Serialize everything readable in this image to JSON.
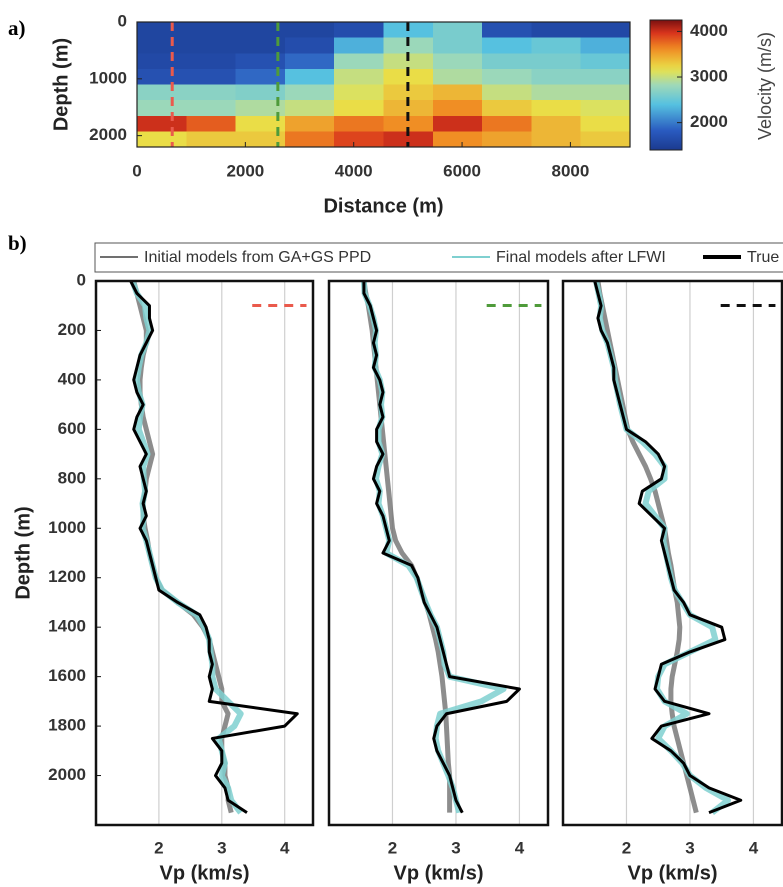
{
  "chart_data": [
    {
      "type": "heatmap",
      "title": "a)",
      "xlabel": "Distance (m)",
      "ylabel": "Depth (m)",
      "xlim": [
        0,
        9100
      ],
      "xticks": [
        0,
        2000,
        4000,
        6000,
        8000
      ],
      "ylim": [
        0,
        2200
      ],
      "yticks": [
        0,
        1000,
        2000
      ],
      "xbins": [
        0,
        910,
        1820,
        2730,
        3640,
        4550,
        5460,
        6370,
        7280,
        8190,
        9100
      ],
      "ybins": [
        0,
        275,
        550,
        825,
        1100,
        1375,
        1650,
        1925,
        2200
      ],
      "values": [
        [
          1550,
          1550,
          1550,
          1550,
          1650,
          2400,
          2600,
          1700,
          1600,
          1600
        ],
        [
          1550,
          1550,
          1550,
          1650,
          2300,
          2800,
          2600,
          2400,
          2500,
          2300
        ],
        [
          1600,
          1600,
          1700,
          1900,
          2800,
          3000,
          2800,
          2600,
          2600,
          2500
        ],
        [
          1700,
          1700,
          1900,
          2400,
          3000,
          3200,
          2900,
          2800,
          2700,
          2700
        ],
        [
          2700,
          2700,
          2650,
          2800,
          3100,
          3300,
          3400,
          3000,
          2900,
          2900
        ],
        [
          2800,
          2800,
          2900,
          3000,
          3200,
          3400,
          3600,
          3300,
          3200,
          3100
        ],
        [
          4000,
          3800,
          3200,
          3500,
          3700,
          3600,
          4000,
          3700,
          3400,
          3200
        ],
        [
          3200,
          3300,
          3300,
          3700,
          3900,
          4000,
          3600,
          3500,
          3400,
          3300
        ]
      ],
      "markers": [
        {
          "x": 650,
          "color": "#ea5a4c"
        },
        {
          "x": 2600,
          "color": "#4f9b3a"
        },
        {
          "x": 5000,
          "color": "#111111"
        }
      ],
      "colorbar_label": "Velocity (m/s)",
      "clim": [
        1400,
        4250
      ],
      "cticks": [
        2000,
        3000,
        4000
      ]
    },
    {
      "type": "line",
      "title": "b)",
      "xlabel": "Vp (km/s)",
      "ylabel": "Depth (m)",
      "xlim": [
        1,
        4.45
      ],
      "xticks": [
        2,
        3,
        4
      ],
      "ylim": [
        0,
        2200
      ],
      "yticks": [
        0,
        200,
        400,
        600,
        800,
        1000,
        1200,
        1400,
        1600,
        1800,
        2000
      ],
      "grid": true,
      "marker_color": "#ea5a4c",
      "x": [
        0,
        50,
        100,
        150,
        200,
        250,
        300,
        350,
        400,
        450,
        500,
        550,
        600,
        650,
        700,
        750,
        800,
        850,
        900,
        950,
        1000,
        1050,
        1100,
        1150,
        1200,
        1250,
        1300,
        1350,
        1400,
        1450,
        1500,
        1550,
        1600,
        1650,
        1700,
        1750,
        1800,
        1850,
        1900,
        1950,
        2000,
        2050,
        2100,
        2150
      ],
      "series": [
        {
          "name": "Initial models from GA+GS PPD",
          "color": "#707070",
          "values": [
            1.6,
            1.65,
            1.7,
            1.75,
            1.8,
            1.8,
            1.75,
            1.72,
            1.7,
            1.7,
            1.72,
            1.75,
            1.8,
            1.85,
            1.9,
            1.85,
            1.8,
            1.78,
            1.75,
            1.75,
            1.78,
            1.82,
            1.85,
            1.9,
            1.95,
            2.05,
            2.3,
            2.55,
            2.7,
            2.8,
            2.85,
            2.9,
            2.95,
            3.0,
            3.0,
            3.1,
            3.05,
            3.0,
            3.0,
            3.05,
            3.05,
            3.1,
            3.1,
            3.15
          ]
        },
        {
          "name": "Final models after LFWI",
          "color": "#7fd0d0",
          "values": [
            1.58,
            1.65,
            1.78,
            1.8,
            1.85,
            1.8,
            1.72,
            1.68,
            1.65,
            1.68,
            1.74,
            1.7,
            1.68,
            1.75,
            1.82,
            1.75,
            1.76,
            1.78,
            1.74,
            1.76,
            1.74,
            1.8,
            1.85,
            1.9,
            1.95,
            2.05,
            2.3,
            2.6,
            2.72,
            2.8,
            2.82,
            2.85,
            2.85,
            2.9,
            3.1,
            3.3,
            3.2,
            2.95,
            3.0,
            3.05,
            3.0,
            3.1,
            3.15,
            3.3
          ]
        },
        {
          "name": "True",
          "color": "#000000",
          "values": [
            1.55,
            1.65,
            1.85,
            1.85,
            1.9,
            1.8,
            1.7,
            1.65,
            1.6,
            1.65,
            1.75,
            1.65,
            1.6,
            1.7,
            1.8,
            1.7,
            1.75,
            1.8,
            1.75,
            1.8,
            1.7,
            1.8,
            1.85,
            1.9,
            1.95,
            2.0,
            2.3,
            2.65,
            2.75,
            2.8,
            2.8,
            2.85,
            2.8,
            2.85,
            2.8,
            4.2,
            4.0,
            2.85,
            3.0,
            3.0,
            2.9,
            3.05,
            3.1,
            3.4
          ]
        }
      ]
    },
    {
      "type": "line",
      "xlabel": "Vp (km/s)",
      "xlim": [
        1,
        4.45
      ],
      "xticks": [
        2,
        3,
        4
      ],
      "ylim": [
        0,
        2200
      ],
      "grid": true,
      "marker_color": "#4f9b3a",
      "x": [
        0,
        50,
        100,
        150,
        200,
        250,
        300,
        350,
        400,
        450,
        500,
        550,
        600,
        650,
        700,
        750,
        800,
        850,
        900,
        950,
        1000,
        1050,
        1100,
        1150,
        1200,
        1250,
        1300,
        1350,
        1400,
        1450,
        1500,
        1550,
        1600,
        1650,
        1700,
        1750,
        1800,
        1850,
        1900,
        1950,
        2000,
        2050,
        2100,
        2150
      ],
      "series": [
        {
          "color": "#707070",
          "values": [
            1.55,
            1.58,
            1.62,
            1.65,
            1.68,
            1.7,
            1.72,
            1.74,
            1.76,
            1.78,
            1.8,
            1.82,
            1.84,
            1.86,
            1.88,
            1.9,
            1.92,
            1.94,
            1.96,
            1.98,
            2.0,
            2.05,
            2.15,
            2.3,
            2.38,
            2.45,
            2.52,
            2.58,
            2.63,
            2.68,
            2.72,
            2.75,
            2.78,
            2.8,
            2.82,
            2.84,
            2.85,
            2.86,
            2.87,
            2.88,
            2.9,
            2.9,
            2.9,
            2.9
          ]
        },
        {
          "color": "#7fd0d0",
          "values": [
            1.55,
            1.56,
            1.64,
            1.7,
            1.74,
            1.72,
            1.74,
            1.72,
            1.8,
            1.84,
            1.82,
            1.84,
            1.78,
            1.78,
            1.84,
            1.78,
            1.74,
            1.8,
            1.78,
            1.85,
            1.9,
            1.95,
            1.9,
            2.25,
            2.38,
            2.45,
            2.52,
            2.6,
            2.7,
            2.75,
            2.8,
            2.82,
            2.9,
            3.75,
            3.4,
            2.75,
            2.7,
            2.68,
            2.72,
            2.8,
            2.88,
            2.95,
            3.0,
            3.05
          ]
        },
        {
          "color": "#000000",
          "values": [
            1.55,
            1.55,
            1.65,
            1.7,
            1.75,
            1.7,
            1.75,
            1.7,
            1.8,
            1.85,
            1.8,
            1.85,
            1.75,
            1.75,
            1.85,
            1.75,
            1.7,
            1.8,
            1.75,
            1.85,
            1.9,
            1.95,
            1.85,
            2.3,
            2.4,
            2.45,
            2.5,
            2.6,
            2.7,
            2.75,
            2.8,
            2.85,
            2.9,
            4.0,
            3.8,
            2.85,
            2.7,
            2.65,
            2.7,
            2.8,
            2.9,
            2.95,
            3.0,
            3.1
          ]
        }
      ]
    },
    {
      "type": "line",
      "xlabel": "Vp (km/s)",
      "xlim": [
        1,
        4.45
      ],
      "xticks": [
        2,
        3,
        4
      ],
      "ylim": [
        0,
        2200
      ],
      "grid": true,
      "marker_color": "#111111",
      "x": [
        0,
        50,
        100,
        150,
        200,
        250,
        300,
        350,
        400,
        450,
        500,
        550,
        600,
        650,
        700,
        750,
        800,
        850,
        900,
        950,
        1000,
        1050,
        1100,
        1150,
        1200,
        1250,
        1300,
        1350,
        1400,
        1450,
        1500,
        1550,
        1600,
        1650,
        1700,
        1750,
        1800,
        1850,
        1900,
        1950,
        2000,
        2050,
        2100,
        2150
      ],
      "series": [
        {
          "color": "#707070",
          "values": [
            1.55,
            1.58,
            1.62,
            1.66,
            1.7,
            1.74,
            1.78,
            1.82,
            1.86,
            1.9,
            1.94,
            1.98,
            2.02,
            2.1,
            2.2,
            2.3,
            2.38,
            2.45,
            2.5,
            2.55,
            2.6,
            2.63,
            2.66,
            2.7,
            2.73,
            2.76,
            2.8,
            2.82,
            2.84,
            2.83,
            2.8,
            2.76,
            2.72,
            2.7,
            2.7,
            2.72,
            2.75,
            2.8,
            2.85,
            2.9,
            2.95,
            3.0,
            3.05,
            3.1
          ]
        },
        {
          "color": "#7fd0d0",
          "values": [
            1.52,
            1.56,
            1.6,
            1.58,
            1.62,
            1.7,
            1.75,
            1.8,
            1.82,
            1.86,
            1.9,
            1.95,
            2.0,
            2.25,
            2.45,
            2.6,
            2.6,
            2.35,
            2.3,
            2.45,
            2.6,
            2.58,
            2.62,
            2.66,
            2.7,
            2.76,
            2.88,
            3.0,
            3.35,
            3.4,
            3.0,
            2.6,
            2.5,
            2.48,
            2.6,
            2.95,
            2.6,
            2.5,
            2.7,
            2.88,
            3.0,
            3.25,
            3.6,
            3.35
          ]
        },
        {
          "color": "#000000",
          "values": [
            1.5,
            1.55,
            1.6,
            1.55,
            1.6,
            1.7,
            1.75,
            1.8,
            1.8,
            1.85,
            1.9,
            1.95,
            2.0,
            2.3,
            2.5,
            2.6,
            2.55,
            2.25,
            2.2,
            2.4,
            2.6,
            2.55,
            2.6,
            2.65,
            2.7,
            2.75,
            2.9,
            3.0,
            3.5,
            3.55,
            3.0,
            2.55,
            2.5,
            2.45,
            2.6,
            3.3,
            2.55,
            2.4,
            2.7,
            2.9,
            3.0,
            3.3,
            3.8,
            3.3
          ]
        }
      ]
    }
  ]
}
